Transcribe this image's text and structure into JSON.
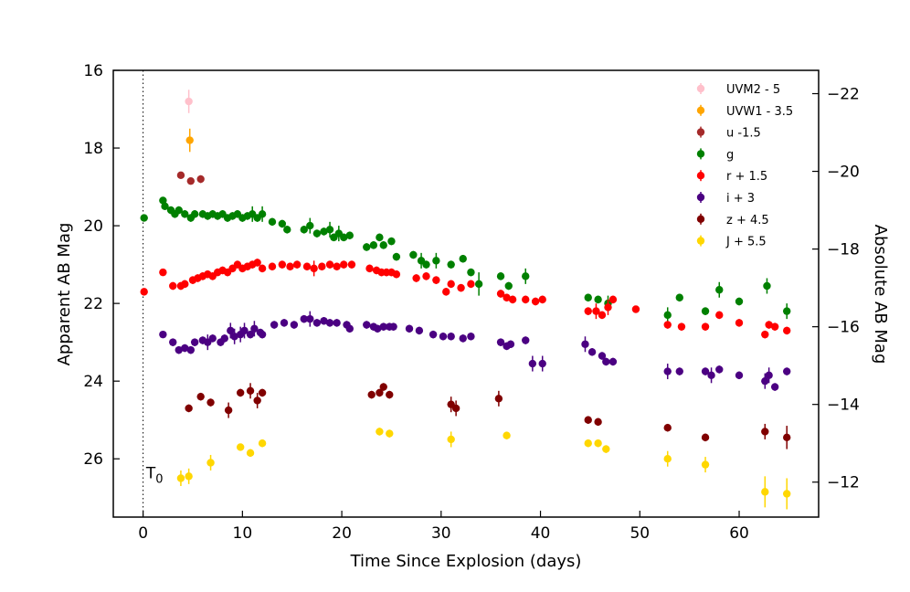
{
  "chart_data": {
    "type": "scatter",
    "xlabel": "Time Since Explosion (days)",
    "ylabel": "Apparent AB Mag",
    "ylabel_right": "Absolute AB Mag",
    "xlim": [
      -3,
      68
    ],
    "ylim": [
      27.5,
      16
    ],
    "y2lim": [
      -11.1,
      -22.6
    ],
    "xticks": [
      0,
      10,
      20,
      30,
      40,
      50,
      60
    ],
    "yticks": [
      16,
      18,
      20,
      22,
      24,
      26
    ],
    "y2ticks": [
      -22,
      -20,
      -18,
      -16,
      -14,
      -12
    ],
    "y2tick_labels": [
      "−22",
      "−20",
      "−18",
      "−16",
      "−14",
      "−12"
    ],
    "grid": false,
    "legend_position": "top-right",
    "annotation": {
      "text": "T",
      "subscript": "0",
      "x": 0.3,
      "y": 26.5
    },
    "reference_line": {
      "x": 0,
      "style": "dotted"
    },
    "series": [
      {
        "name": "UVM2 - 5",
        "color": "#ffc0cb",
        "points": [
          [
            4.6,
            16.8,
            0.3
          ]
        ]
      },
      {
        "name": "UVW1 - 3.5",
        "color": "#ffa500",
        "points": [
          [
            4.7,
            17.8,
            0.3
          ]
        ]
      },
      {
        "name": "u -1.5",
        "color": "#a52a2a",
        "points": [
          [
            3.8,
            18.7,
            0
          ],
          [
            4.8,
            18.85,
            0
          ],
          [
            5.8,
            18.8,
            0.1
          ]
        ]
      },
      {
        "name": "g",
        "color": "#008000",
        "points": [
          [
            0.1,
            19.8,
            0
          ],
          [
            2.0,
            19.35,
            0
          ],
          [
            2.2,
            19.5,
            0
          ],
          [
            2.8,
            19.6,
            0.1
          ],
          [
            3.2,
            19.7,
            0.1
          ],
          [
            3.6,
            19.6,
            0.1
          ],
          [
            4.2,
            19.7,
            0.1
          ],
          [
            4.8,
            19.8,
            0.1
          ],
          [
            5.2,
            19.7,
            0.1
          ],
          [
            6.0,
            19.7,
            0.1
          ],
          [
            6.5,
            19.75,
            0.1
          ],
          [
            7.0,
            19.7,
            0.1
          ],
          [
            7.5,
            19.75,
            0.1
          ],
          [
            8.0,
            19.7,
            0.1
          ],
          [
            8.5,
            19.8,
            0.1
          ],
          [
            9.0,
            19.75,
            0.1
          ],
          [
            9.5,
            19.7,
            0.1
          ],
          [
            10.0,
            19.8,
            0.1
          ],
          [
            10.5,
            19.75,
            0.1
          ],
          [
            11.0,
            19.7,
            0.2
          ],
          [
            11.5,
            19.8,
            0.1
          ],
          [
            12.0,
            19.7,
            0.2
          ],
          [
            13.0,
            19.9,
            0.1
          ],
          [
            14.0,
            19.95,
            0.1
          ],
          [
            14.5,
            20.1,
            0.1
          ],
          [
            16.2,
            20.1,
            0.1
          ],
          [
            16.8,
            20.0,
            0.2
          ],
          [
            17.5,
            20.2,
            0.1
          ],
          [
            18.2,
            20.15,
            0.1
          ],
          [
            18.8,
            20.1,
            0.2
          ],
          [
            19.2,
            20.3,
            0.1
          ],
          [
            19.7,
            20.2,
            0.2
          ],
          [
            20.2,
            20.3,
            0.1
          ],
          [
            20.8,
            20.25,
            0.1
          ],
          [
            22.5,
            20.55,
            0.1
          ],
          [
            23.2,
            20.5,
            0.1
          ],
          [
            23.8,
            20.3,
            0.1
          ],
          [
            24.2,
            20.5,
            0.1
          ],
          [
            25.0,
            20.4,
            0.1
          ],
          [
            25.5,
            20.8,
            0.1
          ],
          [
            27.2,
            20.75,
            0.1
          ],
          [
            28.0,
            20.9,
            0.2
          ],
          [
            28.5,
            21.0,
            0.1
          ],
          [
            29.5,
            20.9,
            0.2
          ],
          [
            31.0,
            21.0,
            0.1
          ],
          [
            32.2,
            20.85,
            0.1
          ],
          [
            33.0,
            21.2,
            0.1
          ],
          [
            33.8,
            21.5,
            0.3
          ],
          [
            36.0,
            21.3,
            0.1
          ],
          [
            36.8,
            21.55,
            0.1
          ],
          [
            38.5,
            21.3,
            0.2
          ],
          [
            44.8,
            21.85,
            0.1
          ],
          [
            45.8,
            21.9,
            0.1
          ],
          [
            46.8,
            22.0,
            0.2
          ],
          [
            52.8,
            22.3,
            0.2
          ],
          [
            54.0,
            21.85,
            0.1
          ],
          [
            56.6,
            22.2,
            0.1
          ],
          [
            58.0,
            21.65,
            0.2
          ],
          [
            60.0,
            21.95,
            0.1
          ],
          [
            62.8,
            21.55,
            0.2
          ],
          [
            64.8,
            22.2,
            0.2
          ]
        ]
      },
      {
        "name": "r + 1.5",
        "color": "#ff0000",
        "points": [
          [
            0.1,
            21.7,
            0
          ],
          [
            2.0,
            21.2,
            0
          ],
          [
            3.0,
            21.55,
            0.1
          ],
          [
            3.8,
            21.55,
            0.1
          ],
          [
            4.2,
            21.5,
            0.1
          ],
          [
            5.0,
            21.4,
            0.1
          ],
          [
            5.5,
            21.35,
            0.1
          ],
          [
            6.0,
            21.3,
            0.1
          ],
          [
            6.5,
            21.25,
            0.1
          ],
          [
            7.0,
            21.3,
            0.1
          ],
          [
            7.5,
            21.2,
            0.1
          ],
          [
            8.0,
            21.15,
            0.1
          ],
          [
            8.5,
            21.2,
            0.1
          ],
          [
            9.0,
            21.1,
            0.1
          ],
          [
            9.5,
            21.0,
            0.1
          ],
          [
            10.0,
            21.1,
            0.1
          ],
          [
            10.5,
            21.05,
            0.1
          ],
          [
            11.0,
            21.0,
            0.1
          ],
          [
            11.5,
            20.95,
            0.1
          ],
          [
            12.0,
            21.1,
            0.1
          ],
          [
            13.0,
            21.05,
            0.1
          ],
          [
            14.0,
            21.0,
            0.1
          ],
          [
            14.8,
            21.05,
            0.1
          ],
          [
            15.5,
            21.0,
            0.1
          ],
          [
            16.5,
            21.05,
            0.1
          ],
          [
            17.2,
            21.1,
            0.2
          ],
          [
            18.0,
            21.05,
            0.1
          ],
          [
            18.8,
            21.0,
            0.1
          ],
          [
            19.5,
            21.05,
            0.1
          ],
          [
            20.2,
            21.0,
            0.1
          ],
          [
            21.0,
            21.0,
            0.1
          ],
          [
            22.8,
            21.1,
            0.1
          ],
          [
            23.5,
            21.15,
            0.1
          ],
          [
            24.0,
            21.2,
            0.1
          ],
          [
            24.5,
            21.2,
            0.1
          ],
          [
            25.0,
            21.2,
            0.1
          ],
          [
            25.5,
            21.25,
            0.1
          ],
          [
            27.5,
            21.35,
            0.1
          ],
          [
            28.5,
            21.3,
            0.1
          ],
          [
            29.5,
            21.4,
            0.1
          ],
          [
            30.5,
            21.7,
            0.1
          ],
          [
            31.0,
            21.5,
            0.1
          ],
          [
            32.0,
            21.6,
            0.1
          ],
          [
            33.0,
            21.5,
            0.1
          ],
          [
            36.0,
            21.75,
            0.1
          ],
          [
            36.6,
            21.85,
            0.1
          ],
          [
            37.2,
            21.9,
            0.1
          ],
          [
            38.5,
            21.9,
            0.1
          ],
          [
            39.5,
            21.95,
            0.1
          ],
          [
            40.2,
            21.9,
            0.1
          ],
          [
            44.8,
            22.2,
            0.1
          ],
          [
            45.6,
            22.2,
            0.2
          ],
          [
            46.2,
            22.3,
            0.1
          ],
          [
            46.8,
            22.1,
            0.2
          ],
          [
            47.3,
            21.9,
            0.1
          ],
          [
            49.6,
            22.15,
            0
          ],
          [
            52.8,
            22.55,
            0.1
          ],
          [
            54.2,
            22.6,
            0.1
          ],
          [
            56.6,
            22.6,
            0.1
          ],
          [
            58.0,
            22.3,
            0.1
          ],
          [
            60.0,
            22.5,
            0.1
          ],
          [
            62.6,
            22.8,
            0.1
          ],
          [
            63.0,
            22.55,
            0.1
          ],
          [
            63.6,
            22.6,
            0.1
          ],
          [
            64.8,
            22.7,
            0.1
          ]
        ]
      },
      {
        "name": "i + 3",
        "color": "#4b0082",
        "points": [
          [
            2.0,
            22.8,
            0
          ],
          [
            3.0,
            23.0,
            0.1
          ],
          [
            3.6,
            23.2,
            0.1
          ],
          [
            4.2,
            23.15,
            0.1
          ],
          [
            4.8,
            23.2,
            0.1
          ],
          [
            5.2,
            23.0,
            0.1
          ],
          [
            6.0,
            22.95,
            0.1
          ],
          [
            6.5,
            23.0,
            0.2
          ],
          [
            7.0,
            22.9,
            0.1
          ],
          [
            7.8,
            23.0,
            0.1
          ],
          [
            8.2,
            22.9,
            0.1
          ],
          [
            8.8,
            22.7,
            0.2
          ],
          [
            9.2,
            22.85,
            0.2
          ],
          [
            9.8,
            22.8,
            0.2
          ],
          [
            10.2,
            22.7,
            0.2
          ],
          [
            10.8,
            22.8,
            0.1
          ],
          [
            11.2,
            22.65,
            0.2
          ],
          [
            11.8,
            22.75,
            0.1
          ],
          [
            12.0,
            22.8,
            0.1
          ],
          [
            13.2,
            22.55,
            0.1
          ],
          [
            14.2,
            22.5,
            0.1
          ],
          [
            15.2,
            22.55,
            0.1
          ],
          [
            16.2,
            22.4,
            0.1
          ],
          [
            16.8,
            22.4,
            0.2
          ],
          [
            17.5,
            22.5,
            0.1
          ],
          [
            18.2,
            22.45,
            0.1
          ],
          [
            18.8,
            22.5,
            0.1
          ],
          [
            19.5,
            22.5,
            0.1
          ],
          [
            20.5,
            22.55,
            0.1
          ],
          [
            20.8,
            22.65,
            0.1
          ],
          [
            22.5,
            22.55,
            0.1
          ],
          [
            23.2,
            22.6,
            0.1
          ],
          [
            23.6,
            22.65,
            0.1
          ],
          [
            24.2,
            22.6,
            0.1
          ],
          [
            24.8,
            22.6,
            0.1
          ],
          [
            25.2,
            22.6,
            0.1
          ],
          [
            26.8,
            22.65,
            0.1
          ],
          [
            27.8,
            22.7,
            0.1
          ],
          [
            29.2,
            22.8,
            0.1
          ],
          [
            30.2,
            22.85,
            0.1
          ],
          [
            31.0,
            22.85,
            0.1
          ],
          [
            32.2,
            22.9,
            0.1
          ],
          [
            33.0,
            22.85,
            0.1
          ],
          [
            36.0,
            23.0,
            0.1
          ],
          [
            36.6,
            23.1,
            0.1
          ],
          [
            37.0,
            23.05,
            0.1
          ],
          [
            38.5,
            22.95,
            0.1
          ],
          [
            39.2,
            23.55,
            0.2
          ],
          [
            40.2,
            23.55,
            0.2
          ],
          [
            44.5,
            23.05,
            0.2
          ],
          [
            45.2,
            23.25,
            0.1
          ],
          [
            46.2,
            23.35,
            0.1
          ],
          [
            46.6,
            23.5,
            0.1
          ],
          [
            47.3,
            23.5,
            0.1
          ],
          [
            52.8,
            23.75,
            0.2
          ],
          [
            54.0,
            23.75,
            0.1
          ],
          [
            56.6,
            23.75,
            0.1
          ],
          [
            57.2,
            23.85,
            0.2
          ],
          [
            58.0,
            23.7,
            0.1
          ],
          [
            60.0,
            23.85,
            0.1
          ],
          [
            62.6,
            24.0,
            0.2
          ],
          [
            63.0,
            23.85,
            0.2
          ],
          [
            63.6,
            24.15,
            0.1
          ],
          [
            64.8,
            23.75,
            0.1
          ]
        ]
      },
      {
        "name": "z + 4.5",
        "color": "#800000",
        "points": [
          [
            4.6,
            24.7,
            0.1
          ],
          [
            5.8,
            24.4,
            0.1
          ],
          [
            6.8,
            24.55,
            0.1
          ],
          [
            8.6,
            24.75,
            0.2
          ],
          [
            9.8,
            24.3,
            0.1
          ],
          [
            10.8,
            24.25,
            0.2
          ],
          [
            11.5,
            24.5,
            0.2
          ],
          [
            12.0,
            24.3,
            0.1
          ],
          [
            23.0,
            24.35,
            0.1
          ],
          [
            23.8,
            24.3,
            0.1
          ],
          [
            24.2,
            24.15,
            0.1
          ],
          [
            24.8,
            24.35,
            0.1
          ],
          [
            31.0,
            24.6,
            0.2
          ],
          [
            31.5,
            24.7,
            0.2
          ],
          [
            35.8,
            24.45,
            0.2
          ],
          [
            44.8,
            25.0,
            0.1
          ],
          [
            45.8,
            25.05,
            0.1
          ],
          [
            52.8,
            25.2,
            0.1
          ],
          [
            56.6,
            25.45,
            0.1
          ],
          [
            62.6,
            25.3,
            0.2
          ],
          [
            64.8,
            25.45,
            0.3
          ]
        ]
      },
      {
        "name": "J + 5.5",
        "color": "#ffd700",
        "points": [
          [
            3.8,
            26.5,
            0.2
          ],
          [
            4.6,
            26.45,
            0.2
          ],
          [
            6.8,
            26.1,
            0.2
          ],
          [
            9.8,
            25.7,
            0
          ],
          [
            10.8,
            25.85,
            0.1
          ],
          [
            12.0,
            25.6,
            0.1
          ],
          [
            23.8,
            25.3,
            0.1
          ],
          [
            24.8,
            25.35,
            0.1
          ],
          [
            31.0,
            25.5,
            0.2
          ],
          [
            36.6,
            25.4,
            0.1
          ],
          [
            44.8,
            25.6,
            0.1
          ],
          [
            45.8,
            25.6,
            0.1
          ],
          [
            46.6,
            25.75,
            0.1
          ],
          [
            52.8,
            26.0,
            0.2
          ],
          [
            56.6,
            26.15,
            0.2
          ],
          [
            62.6,
            26.85,
            0.4
          ],
          [
            64.8,
            26.9,
            0.4
          ]
        ]
      }
    ]
  }
}
